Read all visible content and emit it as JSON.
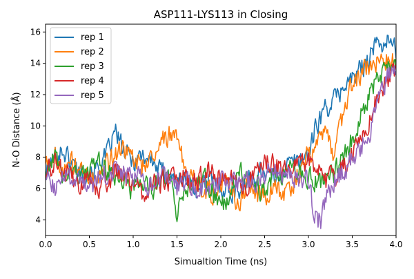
{
  "chart_data": {
    "type": "line",
    "title": "ASP111-LYS113 in Closing",
    "xlabel": "Simualtion Time (ns)",
    "ylabel": "N-O Distance (Å)",
    "xlim": [
      0,
      4
    ],
    "ylim": [
      3,
      16.5
    ],
    "xticks": [
      0,
      0.5,
      1,
      1.5,
      2,
      2.5,
      3,
      3.5,
      4
    ],
    "xtick_labels": [
      "0.0",
      "0.5",
      "1.0",
      "1.5",
      "2.0",
      "2.5",
      "3.0",
      "3.5",
      "4.0"
    ],
    "yticks": [
      4,
      6,
      8,
      10,
      12,
      14,
      16
    ],
    "ytick_labels": [
      "4",
      "6",
      "8",
      "10",
      "12",
      "14",
      "16"
    ],
    "grid": false,
    "legend_position": "top-left",
    "series": [
      {
        "name": "rep 1",
        "color": "#1f77b4",
        "x": [
          0.0,
          0.1,
          0.2,
          0.3,
          0.4,
          0.5,
          0.6,
          0.7,
          0.8,
          0.9,
          1.0,
          1.1,
          1.2,
          1.3,
          1.4,
          1.5,
          1.6,
          1.7,
          1.8,
          1.9,
          2.0,
          2.1,
          2.2,
          2.3,
          2.4,
          2.5,
          2.6,
          2.7,
          2.8,
          2.9,
          3.0,
          3.1,
          3.2,
          3.3,
          3.4,
          3.5,
          3.6,
          3.7,
          3.8,
          3.9,
          4.0
        ],
        "y": [
          7.0,
          8.0,
          8.5,
          7.6,
          7.2,
          6.9,
          7.3,
          8.1,
          9.6,
          8.2,
          7.8,
          8.2,
          7.9,
          7.1,
          7.0,
          6.3,
          6.6,
          6.0,
          6.2,
          6.5,
          6.2,
          5.8,
          6.0,
          6.4,
          6.8,
          7.2,
          6.6,
          7.1,
          7.6,
          7.9,
          8.2,
          10.2,
          11.2,
          11.6,
          12.6,
          13.0,
          13.6,
          14.6,
          15.3,
          15.4,
          14.9
        ]
      },
      {
        "name": "rep 2",
        "color": "#ff7f0e",
        "x": [
          0.0,
          0.1,
          0.2,
          0.3,
          0.4,
          0.5,
          0.6,
          0.7,
          0.8,
          0.9,
          1.0,
          1.1,
          1.2,
          1.3,
          1.4,
          1.5,
          1.6,
          1.7,
          1.8,
          1.9,
          2.0,
          2.1,
          2.2,
          2.3,
          2.4,
          2.5,
          2.6,
          2.7,
          2.8,
          2.9,
          3.0,
          3.1,
          3.2,
          3.3,
          3.4,
          3.5,
          3.6,
          3.7,
          3.8,
          3.9,
          4.0
        ],
        "y": [
          7.8,
          8.1,
          7.4,
          7.6,
          7.0,
          6.6,
          6.9,
          7.4,
          8.3,
          8.6,
          8.0,
          7.3,
          8.2,
          8.7,
          9.5,
          9.3,
          6.9,
          6.4,
          6.0,
          5.8,
          6.2,
          5.9,
          4.8,
          6.4,
          5.4,
          5.6,
          6.1,
          5.8,
          6.0,
          7.1,
          8.2,
          9.0,
          9.5,
          8.0,
          11.0,
          12.6,
          13.4,
          13.9,
          14.3,
          14.1,
          14.0
        ]
      },
      {
        "name": "rep 3",
        "color": "#2ca02c",
        "x": [
          0.0,
          0.1,
          0.2,
          0.3,
          0.4,
          0.5,
          0.6,
          0.7,
          0.8,
          0.9,
          1.0,
          1.1,
          1.2,
          1.3,
          1.4,
          1.5,
          1.6,
          1.7,
          1.8,
          1.9,
          2.0,
          2.1,
          2.2,
          2.3,
          2.4,
          2.5,
          2.6,
          2.7,
          2.8,
          2.9,
          3.0,
          3.1,
          3.2,
          3.3,
          3.4,
          3.5,
          3.6,
          3.7,
          3.8,
          3.9,
          4.0
        ],
        "y": [
          7.2,
          7.9,
          6.8,
          7.4,
          6.6,
          6.8,
          7.8,
          7.3,
          6.7,
          6.2,
          5.9,
          6.3,
          6.0,
          6.4,
          6.7,
          4.5,
          5.7,
          6.1,
          6.6,
          6.0,
          4.7,
          5.7,
          6.8,
          7.2,
          6.3,
          5.8,
          6.8,
          6.6,
          7.1,
          6.9,
          6.6,
          6.6,
          6.4,
          7.0,
          7.9,
          9.2,
          10.6,
          12.3,
          13.1,
          13.5,
          13.9
        ]
      },
      {
        "name": "rep 4",
        "color": "#d62728",
        "x": [
          0.0,
          0.1,
          0.2,
          0.3,
          0.4,
          0.5,
          0.6,
          0.7,
          0.8,
          0.9,
          1.0,
          1.1,
          1.2,
          1.3,
          1.4,
          1.5,
          1.6,
          1.7,
          1.8,
          1.9,
          2.0,
          2.1,
          2.2,
          2.3,
          2.4,
          2.5,
          2.6,
          2.7,
          2.8,
          2.9,
          3.0,
          3.1,
          3.2,
          3.3,
          3.4,
          3.5,
          3.6,
          3.7,
          3.8,
          3.9,
          4.0
        ],
        "y": [
          6.9,
          7.6,
          7.0,
          6.5,
          6.2,
          6.6,
          5.8,
          6.4,
          7.1,
          6.8,
          6.3,
          5.7,
          6.2,
          6.4,
          6.5,
          7.2,
          6.6,
          6.3,
          6.8,
          7.1,
          6.4,
          6.7,
          6.3,
          6.2,
          7.0,
          8.0,
          7.5,
          7.2,
          7.0,
          7.4,
          7.8,
          7.2,
          6.6,
          6.8,
          7.4,
          8.2,
          9.2,
          10.4,
          12.0,
          13.0,
          13.3
        ]
      },
      {
        "name": "rep 5",
        "color": "#9467bd",
        "x": [
          0.0,
          0.1,
          0.2,
          0.3,
          0.4,
          0.5,
          0.6,
          0.7,
          0.8,
          0.9,
          1.0,
          1.1,
          1.2,
          1.3,
          1.4,
          1.5,
          1.6,
          1.7,
          1.8,
          1.9,
          2.0,
          2.1,
          2.2,
          2.3,
          2.4,
          2.5,
          2.6,
          2.7,
          2.8,
          2.9,
          3.0,
          3.05,
          3.1,
          3.15,
          3.2,
          3.3,
          3.4,
          3.5,
          3.6,
          3.7,
          3.8,
          3.9,
          4.0
        ],
        "y": [
          6.5,
          6.0,
          6.7,
          6.4,
          6.1,
          6.2,
          6.6,
          6.9,
          7.3,
          6.9,
          6.4,
          6.7,
          6.3,
          6.4,
          6.6,
          6.0,
          6.4,
          6.2,
          6.1,
          6.0,
          6.5,
          6.6,
          6.3,
          6.4,
          6.6,
          6.9,
          7.1,
          6.8,
          6.9,
          6.7,
          6.8,
          5.0,
          4.0,
          3.9,
          5.4,
          6.5,
          7.2,
          7.8,
          8.6,
          9.7,
          11.6,
          13.2,
          13.8
        ]
      }
    ]
  }
}
